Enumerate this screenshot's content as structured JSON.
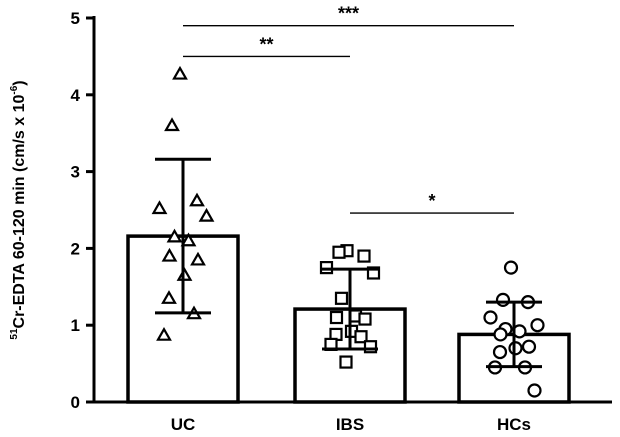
{
  "chart_data": {
    "type": "bar",
    "ylabel": {
      "superscript": "51",
      "main": "Cr-EDTA 60-120 min  (cm/s x 10",
      "exponent": "-6",
      "close": ")"
    },
    "ylim": [
      0,
      5
    ],
    "yticks": [
      "0",
      "1",
      "2",
      "3",
      "4",
      "5"
    ],
    "categories": [
      "UC",
      "IBS",
      "HCs"
    ],
    "values": [
      2.16,
      1.21,
      0.88
    ],
    "error_sd": [
      1.0,
      0.52,
      0.42
    ],
    "markers": [
      "triangle",
      "square",
      "circle"
    ],
    "points": [
      [
        4.27,
        3.6,
        2.62,
        2.52,
        2.42,
        2.15,
        2.1,
        1.9,
        1.85,
        1.65,
        1.35,
        1.15,
        0.87
      ],
      [
        1.97,
        1.95,
        1.9,
        1.75,
        1.68,
        1.35,
        1.12,
        1.1,
        1.08,
        0.92,
        0.88,
        0.85,
        0.75,
        0.72,
        0.52
      ],
      [
        1.75,
        1.33,
        1.3,
        1.1,
        1.0,
        0.95,
        0.92,
        0.88,
        0.72,
        0.7,
        0.65,
        0.45,
        0.45,
        0.15
      ]
    ],
    "significance": [
      {
        "from": "UC",
        "to": "HCs",
        "label": "***",
        "y": 4.9
      },
      {
        "from": "UC",
        "to": "IBS",
        "label": "**",
        "y": 4.5
      },
      {
        "from": "IBS",
        "to": "HCs",
        "label": "*",
        "y": 2.46
      }
    ],
    "grid": false
  }
}
